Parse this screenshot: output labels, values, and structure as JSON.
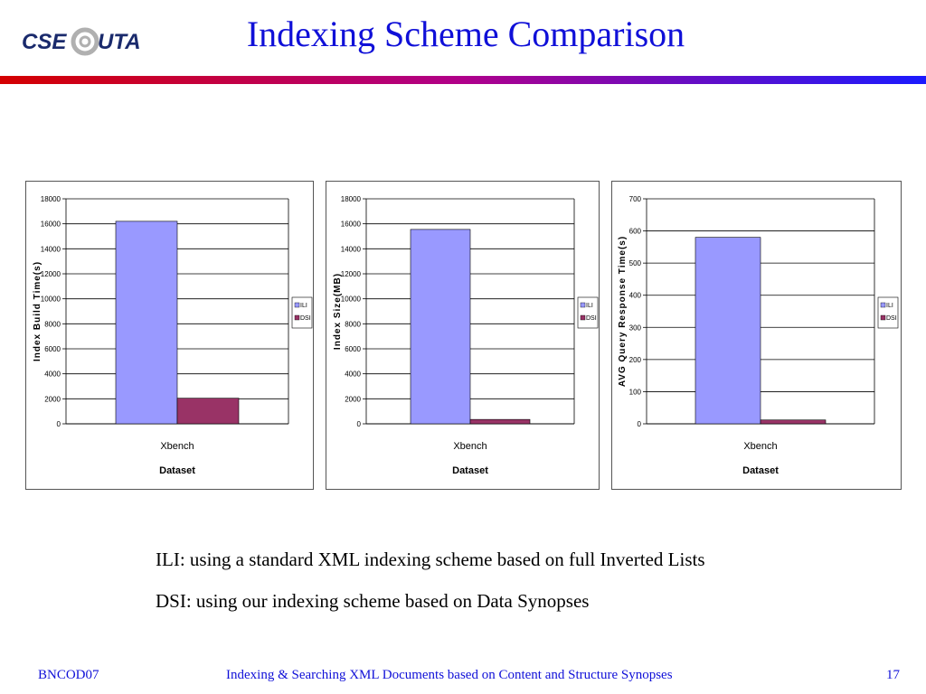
{
  "slide": {
    "title": "Indexing Scheme Comparison",
    "logo": {
      "text_left": "CSE",
      "text_right": "UTA",
      "icon": "at-sign-logo"
    },
    "caption_1": "ILI: using a standard XML indexing scheme based on full Inverted Lists",
    "caption_2": "DSI: using our indexing scheme based on Data Synopses",
    "footer_left": "BNCOD07",
    "footer_center": "Indexing & Searching XML Documents based on Content and Structure Synopses",
    "footer_right": "17"
  },
  "colors": {
    "title": "#1010d8",
    "ili": "#9999ff",
    "dsi": "#993366",
    "divider_left": "#d40000",
    "divider_right": "#1a1aff"
  },
  "chart_data": [
    {
      "type": "bar",
      "categories": [
        "Xbench"
      ],
      "series": [
        {
          "name": "ILI",
          "values": [
            16200
          ]
        },
        {
          "name": "DSI",
          "values": [
            2050
          ]
        }
      ],
      "title": "",
      "xlabel": "Dataset",
      "ylabel": "Index   Build   Time(s)",
      "ylim": [
        0,
        18000
      ],
      "yticks": [
        "0",
        "2000",
        "4000",
        "6000",
        "8000",
        "10000",
        "12000",
        "14000",
        "16000",
        "18000"
      ],
      "grid": true,
      "legend": "right"
    },
    {
      "type": "bar",
      "categories": [
        "Xbench"
      ],
      "series": [
        {
          "name": "ILI",
          "values": [
            15550
          ]
        },
        {
          "name": "DSI",
          "values": [
            350
          ]
        }
      ],
      "title": "",
      "xlabel": "Dataset",
      "ylabel": "Index   Size(MB)",
      "ylim": [
        0,
        18000
      ],
      "yticks": [
        "0",
        "2000",
        "4000",
        "6000",
        "8000",
        "10000",
        "12000",
        "14000",
        "16000",
        "18000"
      ],
      "grid": true,
      "legend": "right"
    },
    {
      "type": "bar",
      "categories": [
        "Xbench"
      ],
      "series": [
        {
          "name": "ILI",
          "values": [
            580
          ]
        },
        {
          "name": "DSI",
          "values": [
            12
          ]
        }
      ],
      "title": "",
      "xlabel": "Dataset",
      "ylabel": "AVG  Query  Response  Time(s)",
      "ylim": [
        0,
        700
      ],
      "yticks": [
        "0",
        "100",
        "200",
        "300",
        "400",
        "500",
        "600",
        "700"
      ],
      "grid": true,
      "legend": "right"
    }
  ]
}
